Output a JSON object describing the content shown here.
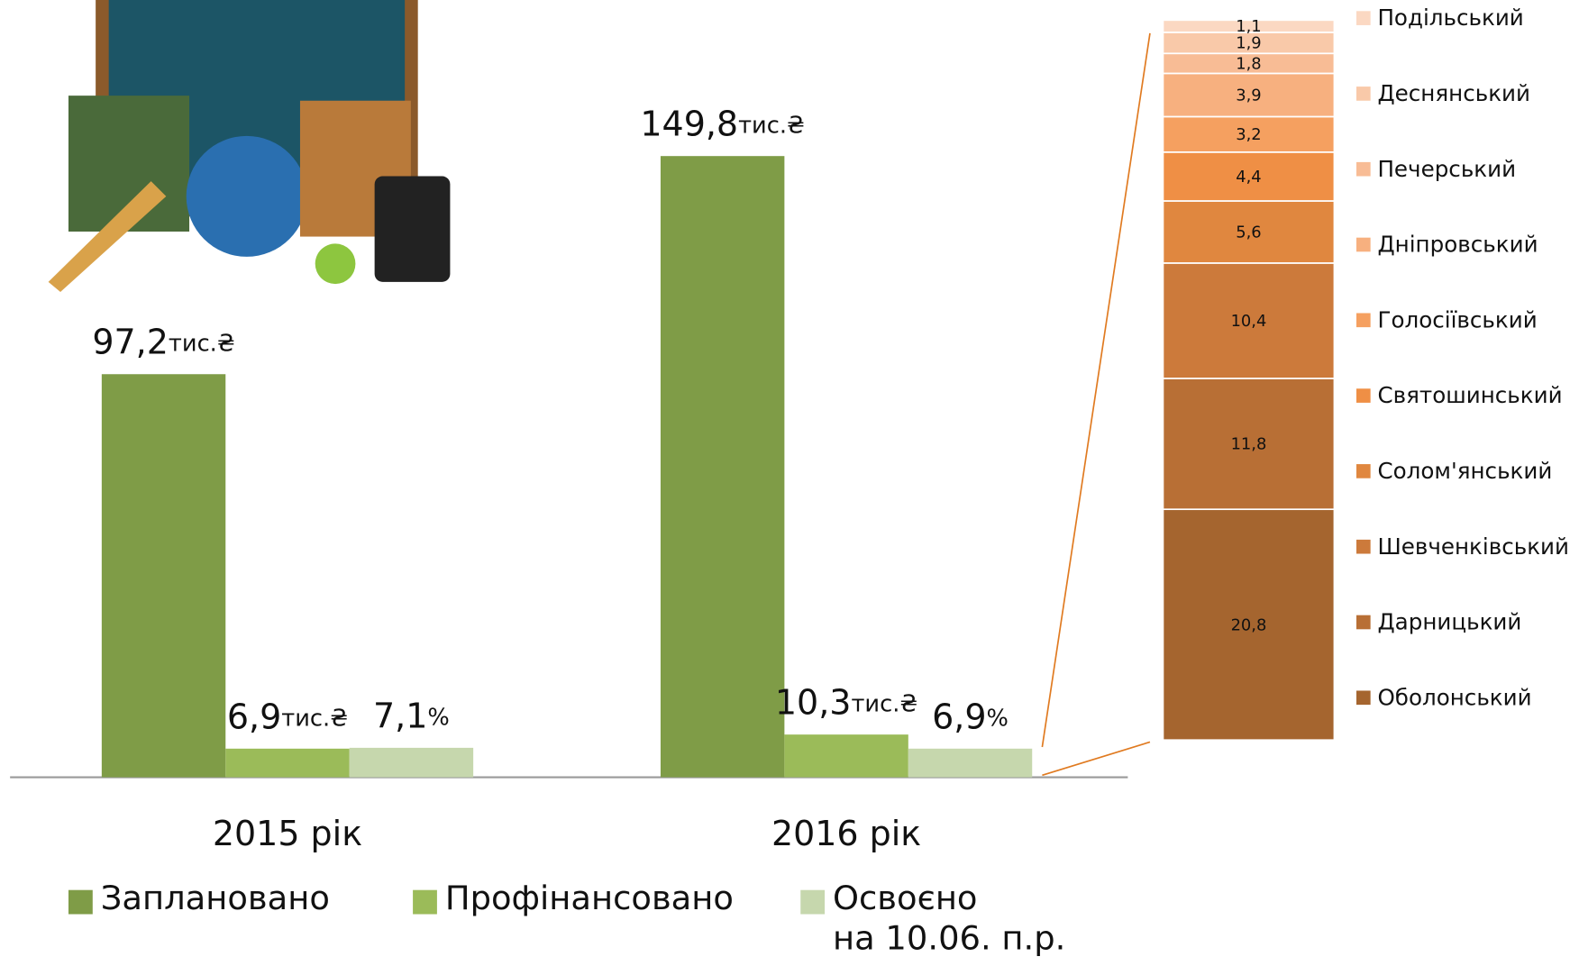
{
  "chart_data": [
    {
      "type": "bar",
      "categories": [
        "2015 рік",
        "2016 рік"
      ],
      "series": [
        {
          "name": "Заплановано",
          "color": "#7f9c47",
          "values": [
            97.2,
            149.8
          ],
          "value_labels": [
            "97,2тис.₴",
            "149,8тис.₴"
          ]
        },
        {
          "name": "Профінансовано",
          "color": "#9bbb59",
          "values": [
            6.9,
            10.3
          ],
          "value_labels": [
            "6,9тис.₴",
            "10,3тис.₴"
          ]
        },
        {
          "name": "Освоєно\nна 10.06. п.р.",
          "color": "#c6d7ad",
          "values": [
            7.1,
            6.9
          ],
          "value_labels": [
            "7,1%",
            "6,9%"
          ]
        }
      ]
    },
    {
      "type": "stacked_bar",
      "series": [
        {
          "name": "Подільський",
          "color": "#fbd8c2",
          "values": [
            1.1
          ],
          "value_labels": [
            "1,1"
          ]
        },
        {
          "name": "Деснянський",
          "color": "#f9c9a9",
          "values": [
            1.9
          ],
          "value_labels": [
            "1,9"
          ]
        },
        {
          "name": "Печерський",
          "color": "#f8bc95",
          "values": [
            1.8
          ],
          "value_labels": [
            "1,8"
          ]
        },
        {
          "name": "Дніпровський",
          "color": "#f7b07f",
          "values": [
            3.9
          ],
          "value_labels": [
            "3,9"
          ]
        },
        {
          "name": "Голосіївський",
          "color": "#f5a060",
          "values": [
            3.2
          ],
          "value_labels": [
            "3,2"
          ]
        },
        {
          "name": "Святошинський",
          "color": "#ef8f45",
          "values": [
            4.4
          ],
          "value_labels": [
            "4,4"
          ]
        },
        {
          "name": "Солом'янський",
          "color": "#e0873f",
          "values": [
            5.6
          ],
          "value_labels": [
            "5,6"
          ]
        },
        {
          "name": "Шевченківський",
          "color": "#cc7a3b",
          "values": [
            10.4
          ],
          "value_labels": [
            "10,4"
          ]
        },
        {
          "name": "Дарницький",
          "color": "#b86f35",
          "values": [
            11.8
          ],
          "value_labels": [
            "11,8"
          ]
        },
        {
          "name": "Оболонський",
          "color": "#a5652f",
          "values": [
            20.8
          ],
          "value_labels": [
            "20,8"
          ]
        }
      ]
    }
  ]
}
